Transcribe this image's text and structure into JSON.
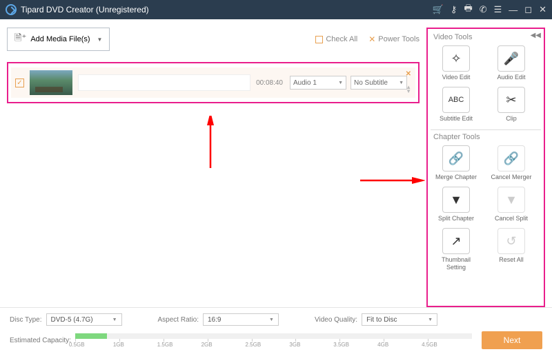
{
  "titlebar": {
    "title": "Tipard DVD Creator (Unregistered)"
  },
  "toolbar": {
    "add_media": "Add Media File(s)",
    "check_all": "Check All",
    "power_tools": "Power Tools"
  },
  "media": {
    "duration": "00:08:40",
    "audio_selected": "Audio 1",
    "subtitle_selected": "No Subtitle"
  },
  "video_tools": {
    "title": "Video Tools",
    "items": [
      {
        "label": "Video Edit",
        "glyph": "✧",
        "disabled": false
      },
      {
        "label": "Audio Edit",
        "glyph": "🎤",
        "disabled": false
      },
      {
        "label": "Subtitle Edit",
        "glyph": "ABC",
        "disabled": false,
        "fontsize": 11
      },
      {
        "label": "Clip",
        "glyph": "✂",
        "disabled": false
      }
    ]
  },
  "chapter_tools": {
    "title": "Chapter Tools",
    "items": [
      {
        "label": "Merge Chapter",
        "glyph": "🔗",
        "disabled": false
      },
      {
        "label": "Cancel Merger",
        "glyph": "🔗",
        "disabled": true
      },
      {
        "label": "Split Chapter",
        "glyph": "▼",
        "disabled": false
      },
      {
        "label": "Cancel Split",
        "glyph": "▼",
        "disabled": true
      },
      {
        "label": "Thumbnail Setting",
        "glyph": "↗",
        "disabled": false
      },
      {
        "label": "Reset All",
        "glyph": "↺",
        "disabled": true
      }
    ]
  },
  "bottom": {
    "disc_type_label": "Disc Type:",
    "disc_type": "DVD-5 (4.7G)",
    "aspect_label": "Aspect Ratio:",
    "aspect": "16:9",
    "quality_label": "Video Quality:",
    "quality": "Fit to Disc",
    "capacity_label": "Estimated Capacity:",
    "ticks": [
      "0.5GB",
      "1GB",
      "1.5GB",
      "2GB",
      "2.5GB",
      "3GB",
      "3.5GB",
      "4GB",
      "4.5GB"
    ],
    "fill_percent": 8,
    "next": "Next"
  },
  "colors": {
    "highlight": "#e91e8c",
    "arrow": "#ff0000",
    "titlebar_bg": "#2b3d4f",
    "accent": "#f0a050"
  }
}
